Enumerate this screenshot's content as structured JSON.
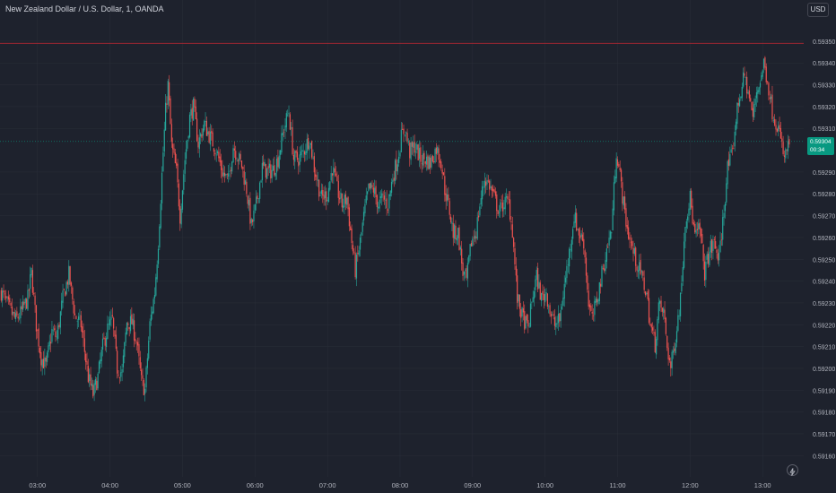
{
  "header": {
    "symbol_title": "New Zealand Dollar / U.S. Dollar, 1, OANDA",
    "currency": "USD"
  },
  "last_price": {
    "value": "0.59304",
    "countdown": "00:34"
  },
  "colors": {
    "background": "#1e222d",
    "up": "#26a69a",
    "down": "#ef5350",
    "grid": "#2a2e39",
    "high_line": "#b22833",
    "last_price_line": "#089981"
  },
  "icons": [
    "lightning-icon"
  ],
  "chart_data": {
    "type": "candlestick",
    "title": "New Zealand Dollar / U.S. Dollar, 1, OANDA",
    "ylim": [
      0.59156,
      0.59359
    ],
    "y_ticks": [
      "0.59350",
      "0.59340",
      "0.59330",
      "0.59320",
      "0.59310",
      "0.59290",
      "0.59280",
      "0.59270",
      "0.59260",
      "0.59250",
      "0.59240",
      "0.59230",
      "0.59220",
      "0.59210",
      "0.59200",
      "0.59190",
      "0.59180",
      "0.59170",
      "0.59160"
    ],
    "x_ticks": [
      "03:00",
      "04:00",
      "05:00",
      "06:00",
      "07:00",
      "08:00",
      "09:00",
      "10:00",
      "11:00",
      "12:00",
      "13:00"
    ],
    "x_range": [
      "02:29",
      "13:34"
    ],
    "interval_minutes": 1,
    "reference_lines": {
      "session_high": 0.59349,
      "last_price": 0.59304
    },
    "close_path": [
      [
        "02:30",
        0.59235
      ],
      [
        "02:37",
        0.59227
      ],
      [
        "02:42",
        0.59222
      ],
      [
        "02:47",
        0.59226
      ],
      [
        "02:52",
        0.59232
      ],
      [
        "02:55",
        0.59244
      ],
      [
        "02:59",
        0.5922
      ],
      [
        "03:03",
        0.59205
      ],
      [
        "03:07",
        0.59201
      ],
      [
        "03:12",
        0.59217
      ],
      [
        "03:16",
        0.59214
      ],
      [
        "03:21",
        0.59232
      ],
      [
        "03:26",
        0.59243
      ],
      [
        "03:31",
        0.59224
      ],
      [
        "03:36",
        0.5922
      ],
      [
        "03:42",
        0.59196
      ],
      [
        "03:46",
        0.59188
      ],
      [
        "03:50",
        0.59196
      ],
      [
        "03:54",
        0.5921
      ],
      [
        "03:58",
        0.59218
      ],
      [
        "04:02",
        0.59222
      ],
      [
        "04:06",
        0.592
      ],
      [
        "04:10",
        0.59198
      ],
      [
        "04:14",
        0.59221
      ],
      [
        "04:18",
        0.59221
      ],
      [
        "04:22",
        0.59212
      ],
      [
        "04:26",
        0.59194
      ],
      [
        "04:29",
        0.5919
      ],
      [
        "04:33",
        0.5922
      ],
      [
        "04:37",
        0.59235
      ],
      [
        "04:40",
        0.59258
      ],
      [
        "04:44",
        0.59299
      ],
      [
        "04:46",
        0.59318
      ],
      [
        "04:48",
        0.5933
      ],
      [
        "04:51",
        0.59302
      ],
      [
        "04:55",
        0.5929
      ],
      [
        "04:58",
        0.5927
      ],
      [
        "05:02",
        0.59296
      ],
      [
        "05:06",
        0.59315
      ],
      [
        "05:09",
        0.5932
      ],
      [
        "05:13",
        0.59303
      ],
      [
        "05:18",
        0.59312
      ],
      [
        "05:22",
        0.59307
      ],
      [
        "05:28",
        0.593
      ],
      [
        "05:33",
        0.5929
      ],
      [
        "05:38",
        0.59286
      ],
      [
        "05:42",
        0.59302
      ],
      [
        "05:45",
        0.59298
      ],
      [
        "05:49",
        0.59293
      ],
      [
        "05:53",
        0.59282
      ],
      [
        "05:57",
        0.59265
      ],
      [
        "06:01",
        0.59275
      ],
      [
        "06:06",
        0.59292
      ],
      [
        "06:11",
        0.5929
      ],
      [
        "06:15",
        0.59291
      ],
      [
        "06:19",
        0.59296
      ],
      [
        "06:24",
        0.5931
      ],
      [
        "06:28",
        0.59318
      ],
      [
        "06:32",
        0.59296
      ],
      [
        "06:36",
        0.59296
      ],
      [
        "06:40",
        0.59299
      ],
      [
        "06:45",
        0.59306
      ],
      [
        "06:49",
        0.59292
      ],
      [
        "06:52",
        0.59285
      ],
      [
        "06:55",
        0.59278
      ],
      [
        "07:00",
        0.5928
      ],
      [
        "07:04",
        0.59292
      ],
      [
        "07:08",
        0.59282
      ],
      [
        "07:12",
        0.59275
      ],
      [
        "07:16",
        0.59278
      ],
      [
        "07:20",
        0.59258
      ],
      [
        "07:23",
        0.59245
      ],
      [
        "07:27",
        0.59258
      ],
      [
        "07:31",
        0.59273
      ],
      [
        "07:34",
        0.59282
      ],
      [
        "07:38",
        0.59282
      ],
      [
        "07:42",
        0.59275
      ],
      [
        "07:46",
        0.59278
      ],
      [
        "07:50",
        0.59275
      ],
      [
        "07:54",
        0.59288
      ],
      [
        "07:58",
        0.59296
      ],
      [
        "08:01",
        0.59306
      ],
      [
        "08:04",
        0.5931
      ],
      [
        "08:08",
        0.59299
      ],
      [
        "08:12",
        0.59302
      ],
      [
        "08:17",
        0.59296
      ],
      [
        "08:21",
        0.59296
      ],
      [
        "08:25",
        0.59294
      ],
      [
        "08:30",
        0.59301
      ],
      [
        "08:34",
        0.59295
      ],
      [
        "08:37",
        0.59282
      ],
      [
        "08:41",
        0.59272
      ],
      [
        "08:44",
        0.59262
      ],
      [
        "08:48",
        0.59262
      ],
      [
        "08:52",
        0.59244
      ],
      [
        "08:55",
        0.5924
      ],
      [
        "08:59",
        0.59258
      ],
      [
        "09:03",
        0.59263
      ],
      [
        "09:06",
        0.59275
      ],
      [
        "09:10",
        0.59287
      ],
      [
        "09:14",
        0.59284
      ],
      [
        "09:18",
        0.59278
      ],
      [
        "09:22",
        0.59272
      ],
      [
        "09:26",
        0.59276
      ],
      [
        "09:30",
        0.59276
      ],
      [
        "09:33",
        0.59263
      ],
      [
        "09:37",
        0.59232
      ],
      [
        "09:41",
        0.59224
      ],
      [
        "09:46",
        0.59218
      ],
      [
        "09:50",
        0.59234
      ],
      [
        "09:53",
        0.59242
      ],
      [
        "09:57",
        0.59232
      ],
      [
        "10:01",
        0.59235
      ],
      [
        "10:05",
        0.59224
      ],
      [
        "10:08",
        0.5922
      ],
      [
        "10:12",
        0.59222
      ],
      [
        "10:16",
        0.59238
      ],
      [
        "10:20",
        0.59253
      ],
      [
        "10:24",
        0.5927
      ],
      [
        "10:28",
        0.59262
      ],
      [
        "10:32",
        0.59258
      ],
      [
        "10:36",
        0.5923
      ],
      [
        "10:39",
        0.59222
      ],
      [
        "10:43",
        0.59232
      ],
      [
        "10:47",
        0.59243
      ],
      [
        "10:51",
        0.59254
      ],
      [
        "10:55",
        0.59264
      ],
      [
        "10:59",
        0.593
      ],
      [
        "11:02",
        0.59288
      ],
      [
        "11:05",
        0.59275
      ],
      [
        "11:08",
        0.59264
      ],
      [
        "11:12",
        0.59255
      ],
      [
        "11:16",
        0.59248
      ],
      [
        "11:20",
        0.59242
      ],
      [
        "11:24",
        0.59234
      ],
      [
        "11:27",
        0.5922
      ],
      [
        "11:31",
        0.59211
      ],
      [
        "11:34",
        0.59228
      ],
      [
        "11:38",
        0.59226
      ],
      [
        "11:41",
        0.5921
      ],
      [
        "11:44",
        0.592
      ],
      [
        "11:48",
        0.59215
      ],
      [
        "11:52",
        0.59232
      ],
      [
        "11:56",
        0.59268
      ],
      [
        "12:00",
        0.59278
      ],
      [
        "12:04",
        0.5926
      ],
      [
        "12:08",
        0.59264
      ],
      [
        "12:12",
        0.59244
      ],
      [
        "12:16",
        0.59254
      ],
      [
        "12:20",
        0.59257
      ],
      [
        "12:24",
        0.5925
      ],
      [
        "12:28",
        0.59273
      ],
      [
        "12:31",
        0.59292
      ],
      [
        "12:35",
        0.59298
      ],
      [
        "12:38",
        0.59315
      ],
      [
        "12:41",
        0.59325
      ],
      [
        "12:45",
        0.59334
      ],
      [
        "12:49",
        0.59324
      ],
      [
        "12:52",
        0.59315
      ],
      [
        "12:55",
        0.59327
      ],
      [
        "12:58",
        0.59332
      ],
      [
        "13:01",
        0.5934
      ],
      [
        "13:04",
        0.59332
      ],
      [
        "13:08",
        0.59318
      ],
      [
        "13:13",
        0.5931
      ],
      [
        "13:18",
        0.59296
      ],
      [
        "13:22",
        0.59304
      ]
    ]
  }
}
